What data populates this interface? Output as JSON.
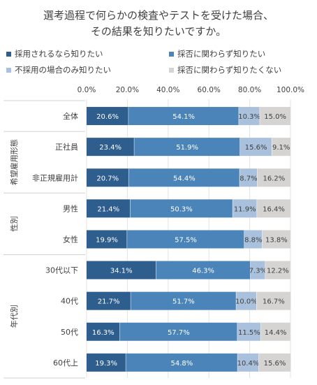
{
  "chart_data": {
    "type": "bar",
    "orientation": "horizontal",
    "stacked": true,
    "title_lines": [
      "選考過程で何らかの検査やテストを受けた場合、",
      "その結果を知りたいですか。"
    ],
    "xlim": [
      0,
      100
    ],
    "x_ticks": [
      "0.0%",
      "20.0%",
      "40.0%",
      "60.0%",
      "80.0%",
      "100.0%"
    ],
    "grid": true,
    "legend_position": "top",
    "categories": [
      "全体",
      "正社員",
      "非正規雇用計",
      "男性",
      "女性",
      "30代以下",
      "40代",
      "50代",
      "60代上"
    ],
    "groups": [
      {
        "label": "",
        "categories": [
          "全体"
        ]
      },
      {
        "label": "希望雇用形態",
        "categories": [
          "正社員",
          "非正規雇用計"
        ]
      },
      {
        "label": "性別",
        "categories": [
          "男性",
          "女性"
        ]
      },
      {
        "label": "年代別",
        "categories": [
          "30代以下",
          "40代",
          "50代",
          "60代上"
        ]
      }
    ],
    "series": [
      {
        "name": "採用されるなら知りたい",
        "color": "#2e5e8e",
        "values": [
          20.6,
          23.4,
          20.7,
          21.4,
          19.9,
          34.1,
          21.7,
          16.3,
          19.3
        ],
        "labels": [
          "20.6%",
          "23.4%",
          "20.7%",
          "21.4%",
          "19.9%",
          "34.1%",
          "21.7%",
          "16.3%",
          "19.3%"
        ]
      },
      {
        "name": "採否に関わらず知りたい",
        "color": "#4a84b8",
        "values": [
          54.1,
          51.9,
          54.4,
          50.3,
          57.5,
          46.3,
          51.7,
          57.7,
          54.8
        ],
        "labels": [
          "54.1%",
          "51.9%",
          "54.4%",
          "50.3%",
          "57.5%",
          "46.3%",
          "51.7%",
          "57.7%",
          "54.8%"
        ]
      },
      {
        "name": "不採用の場合のみ知りたい",
        "color": "#a9c1dc",
        "values": [
          10.3,
          15.6,
          8.7,
          11.9,
          8.8,
          7.3,
          10.0,
          11.5,
          10.4
        ],
        "labels": [
          "10.3%",
          "15.6%",
          "8.7%",
          "11.9%",
          "8.8%",
          "7.3%",
          "10.0%",
          "11.5%",
          "10.4%"
        ]
      },
      {
        "name": "採否に関わらず知りたくない",
        "color": "#d6d3d3",
        "values": [
          15.0,
          9.1,
          16.2,
          16.4,
          13.8,
          12.2,
          16.7,
          14.4,
          15.6
        ],
        "labels": [
          "15.0%",
          "9.1%",
          "16.2%",
          "16.4%",
          "13.8%",
          "12.2%",
          "16.7%",
          "14.4%",
          "15.6%"
        ]
      }
    ]
  }
}
